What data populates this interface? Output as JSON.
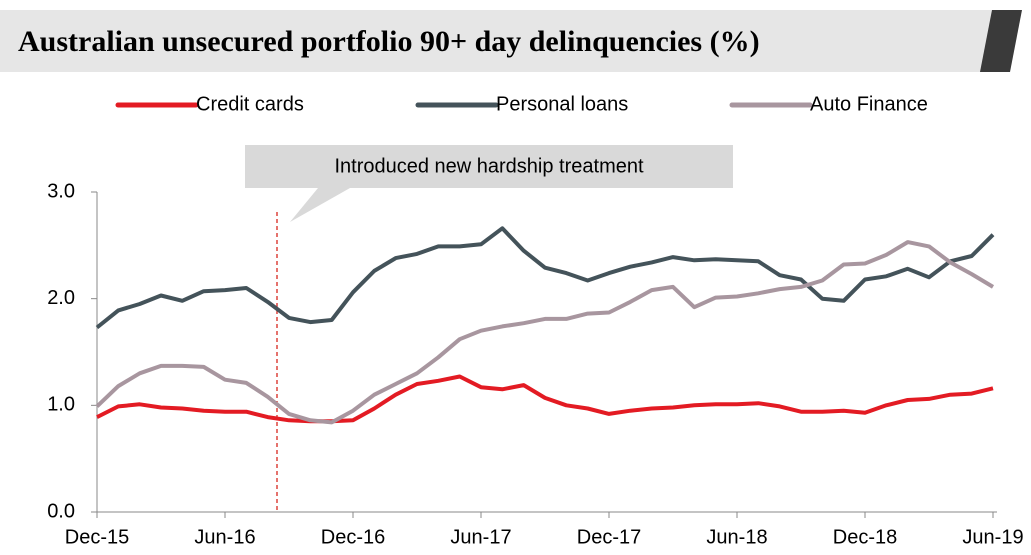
{
  "chart_data": {
    "type": "line",
    "title": "Australian unsecured portfolio 90+ day delinquencies (%)",
    "annotation": "Introduced new hardship treatment",
    "categories": [
      "Dec-15",
      null,
      null,
      null,
      null,
      null,
      "Jun-16",
      null,
      null,
      null,
      null,
      null,
      "Dec-16",
      null,
      null,
      null,
      null,
      null,
      "Jun-17",
      null,
      null,
      null,
      null,
      null,
      "Dec-17",
      null,
      null,
      null,
      null,
      null,
      "Jun-18",
      null,
      null,
      null,
      null,
      null,
      "Dec-18",
      null,
      null,
      null,
      null,
      null,
      "Jun-19"
    ],
    "series": [
      {
        "name": "Credit cards",
        "color": "#e31b23",
        "values": [
          0.89,
          0.99,
          1.01,
          0.98,
          0.97,
          0.95,
          0.94,
          0.94,
          0.89,
          0.86,
          0.85,
          0.85,
          0.86,
          0.97,
          1.1,
          1.2,
          1.23,
          1.27,
          1.17,
          1.15,
          1.19,
          1.07,
          1.0,
          0.97,
          0.92,
          0.95,
          0.97,
          0.98,
          1.0,
          1.01,
          1.01,
          1.02,
          0.99,
          0.94,
          0.94,
          0.95,
          0.93,
          1.0,
          1.05,
          1.06,
          1.1,
          1.11,
          1.16
        ]
      },
      {
        "name": "Personal loans",
        "color": "#44535a",
        "values": [
          1.73,
          1.89,
          1.95,
          2.03,
          1.98,
          2.07,
          2.08,
          2.1,
          1.97,
          1.82,
          1.78,
          1.8,
          2.06,
          2.26,
          2.38,
          2.42,
          2.49,
          2.49,
          2.51,
          2.66,
          2.45,
          2.29,
          2.24,
          2.17,
          2.24,
          2.3,
          2.34,
          2.39,
          2.36,
          2.37,
          2.36,
          2.35,
          2.22,
          2.18,
          2.0,
          1.98,
          2.18,
          2.21,
          2.28,
          2.2,
          2.35,
          2.4,
          2.6
        ]
      },
      {
        "name": "Auto Finance",
        "color": "#a8969f",
        "values": [
          0.99,
          1.18,
          1.3,
          1.37,
          1.37,
          1.36,
          1.24,
          1.21,
          1.08,
          0.92,
          0.86,
          0.84,
          0.95,
          1.1,
          1.2,
          1.3,
          1.45,
          1.62,
          1.7,
          1.74,
          1.77,
          1.81,
          1.81,
          1.86,
          1.87,
          1.97,
          2.08,
          2.11,
          1.92,
          2.01,
          2.02,
          2.05,
          2.09,
          2.11,
          2.17,
          2.32,
          2.33,
          2.41,
          2.53,
          2.49,
          2.34,
          2.23,
          2.11
        ]
      }
    ],
    "ylim": [
      0,
      3
    ],
    "yticks": [
      {
        "value": 0,
        "label": "0.0"
      },
      {
        "value": 1,
        "label": "1.0"
      },
      {
        "value": 2,
        "label": "2.0"
      },
      {
        "value": 3,
        "label": "3.0"
      }
    ],
    "grid": false,
    "legend": "top"
  }
}
